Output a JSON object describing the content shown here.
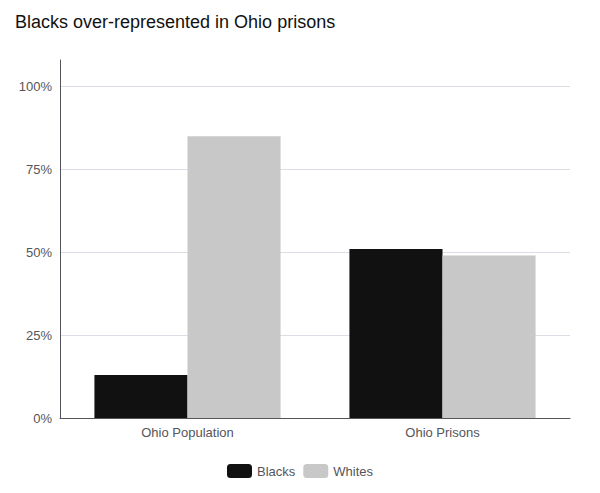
{
  "chart_data": {
    "type": "bar",
    "title": "Blacks over-represented in Ohio prisons",
    "categories": [
      "Ohio Population",
      "Ohio Prisons"
    ],
    "series": [
      {
        "name": "Blacks",
        "color": "#111111",
        "values": [
          0.13,
          0.51
        ]
      },
      {
        "name": "Whites",
        "color": "#c8c8c8",
        "values": [
          0.85,
          0.49
        ]
      }
    ],
    "ylim": [
      0,
      1.08
    ],
    "yticks": [
      {
        "value": 0.0,
        "label": "0%"
      },
      {
        "value": 0.25,
        "label": "25%"
      },
      {
        "value": 0.5,
        "label": "50%"
      },
      {
        "value": 0.75,
        "label": "75%"
      },
      {
        "value": 1.0,
        "label": "100%"
      }
    ],
    "grid": true,
    "legend": "bottom"
  }
}
